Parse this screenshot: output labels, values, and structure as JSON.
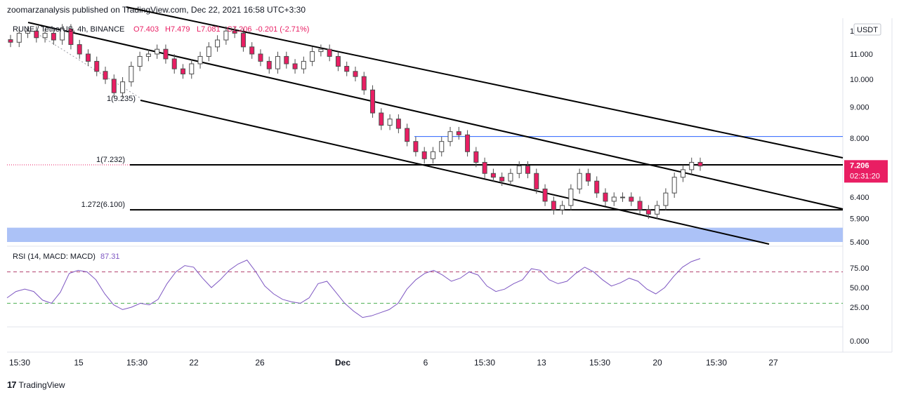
{
  "header": {
    "published": "zoomarzanalysis published on TradingView.com, Dec 22, 2021 16:58 UTC+3:30"
  },
  "legend": {
    "symbol": "RUNE / TetherUS, 4h, BINANCE",
    "open": "O7.403",
    "high": "H7.479",
    "low": "L7.081",
    "close": "C7.206",
    "change": "-0.201 (-2.71%)"
  },
  "rsi_legend": {
    "label": "RSI (14, MACD: MACD)",
    "value": "87.31"
  },
  "price_axis": {
    "currency": "USDT",
    "current_price": "7.206",
    "countdown": "02:31:20",
    "top_partial": "1"
  },
  "footer": {
    "brand": "TradingView"
  },
  "colors": {
    "up": "#26a69a",
    "down": "#e91e63",
    "candle_body": "#4d4d4d",
    "blue_zone": "#a8bff7",
    "blue_line": "#2962ff",
    "rsi_line": "#7e57c2",
    "rsi_upper": "#b2426e",
    "rsi_lower": "#4caf50",
    "price_label": "#e91e63"
  },
  "chart_data": [
    {
      "type": "candlestick",
      "title": "RUNE / TetherUS, 4h, BINANCE",
      "y_scale": "log",
      "ylim": [
        5.2,
        12.3
      ],
      "yticks": [
        {
          "value": 11.0,
          "label": "11.000"
        },
        {
          "value": 10.0,
          "label": "10.000"
        },
        {
          "value": 9.0,
          "label": "9.000"
        },
        {
          "value": 8.0,
          "label": "8.000"
        },
        {
          "value": 6.4,
          "label": "6.400"
        },
        {
          "value": 5.9,
          "label": "5.900"
        },
        {
          "value": 5.4,
          "label": "5.400"
        }
      ],
      "x_ticks": [
        "15:30",
        "15",
        "15:30",
        "22",
        "26",
        "Dec",
        "6",
        "15:30",
        "13",
        "15:30",
        "20",
        "15:30",
        "27"
      ],
      "close_series": [
        11.5,
        11.9,
        12.0,
        11.7,
        11.9,
        11.6,
        12.1,
        11.4,
        11.0,
        10.7,
        10.3,
        10.0,
        9.5,
        9.9,
        10.5,
        10.9,
        11.0,
        11.2,
        10.8,
        10.4,
        10.2,
        10.6,
        10.9,
        11.3,
        11.6,
        12.0,
        11.9,
        11.3,
        11.0,
        10.7,
        10.4,
        10.9,
        10.6,
        10.4,
        10.7,
        11.1,
        11.2,
        10.9,
        10.5,
        10.3,
        10.1,
        9.6,
        8.8,
        8.4,
        8.6,
        8.3,
        7.9,
        7.6,
        7.4,
        7.6,
        7.9,
        8.2,
        8.1,
        7.6,
        7.3,
        7.0,
        6.9,
        6.8,
        7.0,
        7.2,
        7.0,
        6.6,
        6.3,
        6.1,
        6.2,
        6.6,
        7.0,
        6.8,
        6.5,
        6.3,
        6.4,
        6.4,
        6.3,
        6.1,
        6.0,
        6.2,
        6.5,
        6.9,
        7.1,
        7.3,
        7.2
      ],
      "horizontal_levels": [
        {
          "label": "1(7.232)",
          "value": 7.232
        },
        {
          "label": "1.272(6.100)",
          "value": 6.1
        }
      ],
      "annotations": [
        {
          "label": "1(9.235)",
          "value": 9.235
        }
      ],
      "resistance_level": 8.05,
      "demand_zone": [
        5.4,
        5.7
      ],
      "last_price": 7.206
    },
    {
      "type": "line",
      "title": "RSI (14, MACD: MACD)",
      "ylim": [
        0,
        100
      ],
      "yticks": [
        {
          "value": 75,
          "label": "75.00"
        },
        {
          "value": 50,
          "label": "50.00"
        },
        {
          "value": 25,
          "label": "25.00"
        },
        {
          "value": 0,
          "label": "0.000"
        }
      ],
      "levels": [
        70,
        30
      ],
      "values": [
        37,
        45,
        48,
        45,
        34,
        30,
        44,
        68,
        72,
        70,
        60,
        42,
        28,
        22,
        25,
        30,
        28,
        35,
        55,
        70,
        78,
        76,
        62,
        50,
        60,
        72,
        80,
        85,
        70,
        52,
        42,
        35,
        32,
        30,
        37,
        55,
        58,
        44,
        30,
        20,
        12,
        14,
        18,
        22,
        30,
        48,
        60,
        68,
        72,
        66,
        58,
        62,
        70,
        66,
        52,
        45,
        48,
        55,
        60,
        74,
        72,
        60,
        55,
        58,
        68,
        76,
        70,
        60,
        52,
        56,
        62,
        58,
        48,
        42,
        50,
        64,
        76,
        83,
        87
      ]
    }
  ]
}
